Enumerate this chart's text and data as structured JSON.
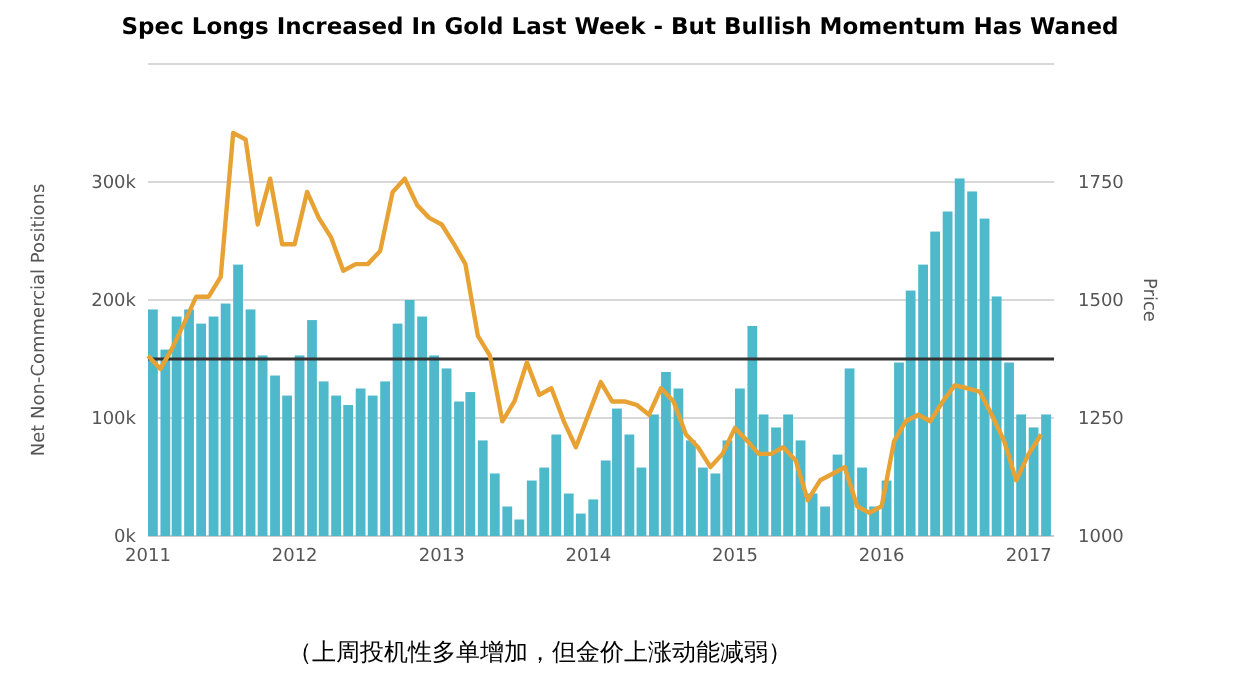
{
  "chart_data": {
    "type": "bar",
    "title": "Spec Longs Increased In Gold Last Week - But Bullish Momentum Has Waned",
    "ylabel": "Net Non-Commercial Positions",
    "y2label": "Price",
    "annotations": [
      "（上周投机性多单增加，但金价上涨动能减弱）"
    ],
    "x": [
      "2011-01",
      "2011-02",
      "2011-03",
      "2011-04",
      "2011-05",
      "2011-06",
      "2011-07",
      "2011-08",
      "2011-09",
      "2011-10",
      "2011-11",
      "2011-12",
      "2012-01",
      "2012-02",
      "2012-03",
      "2012-04",
      "2012-05",
      "2012-06",
      "2012-07",
      "2012-08",
      "2012-09",
      "2012-10",
      "2012-11",
      "2012-12",
      "2013-01",
      "2013-02",
      "2013-03",
      "2013-04",
      "2013-05",
      "2013-06",
      "2013-07",
      "2013-08",
      "2013-09",
      "2013-10",
      "2013-11",
      "2013-12",
      "2014-01",
      "2014-02",
      "2014-03",
      "2014-04",
      "2014-05",
      "2014-06",
      "2014-07",
      "2014-08",
      "2014-09",
      "2014-10",
      "2014-11",
      "2014-12",
      "2015-01",
      "2015-02",
      "2015-03",
      "2015-04",
      "2015-05",
      "2015-06",
      "2015-07",
      "2015-08",
      "2015-09",
      "2015-10",
      "2015-11",
      "2015-12",
      "2016-01",
      "2016-02",
      "2016-03",
      "2016-04",
      "2016-05",
      "2016-06",
      "2016-07",
      "2016-08",
      "2016-09",
      "2016-10",
      "2016-11",
      "2016-12",
      "2017-01",
      "2017-02"
    ],
    "series": [
      {
        "color": "#4fb9cc",
        "values": [
          192000,
          158000,
          186000,
          192000,
          180000,
          186000,
          197000,
          230000,
          192000,
          153000,
          136000,
          119000,
          153000,
          183000,
          131000,
          119000,
          111000,
          125000,
          119000,
          131000,
          180000,
          200000,
          186000,
          153000,
          142000,
          114000,
          122000,
          81000,
          53000,
          25000,
          14000,
          47000,
          58000,
          86000,
          36000,
          19000,
          31000,
          64000,
          108000,
          86000,
          58000,
          103000,
          139000,
          125000,
          81000,
          58000,
          53000,
          81000,
          125000,
          178000,
          103000,
          92000,
          103000,
          81000,
          36000,
          25000,
          69000,
          142000,
          58000,
          25000,
          47000,
          147000,
          208000,
          230000,
          258000,
          275000,
          303000,
          292000,
          269000,
          203000,
          147000,
          103000,
          92000,
          103000
        ]
      },
      {
        "type": "line",
        "axis": "y2",
        "color": "#e8a234",
        "values": [
          1382,
          1354,
          1396,
          1451,
          1507,
          1507,
          1549,
          1854,
          1840,
          1660,
          1757,
          1618,
          1618,
          1729,
          1674,
          1632,
          1562,
          1576,
          1576,
          1604,
          1729,
          1757,
          1701,
          1674,
          1660,
          1618,
          1576,
          1424,
          1382,
          1243,
          1285,
          1368,
          1299,
          1313,
          1243,
          1188,
          1257,
          1326,
          1285,
          1285,
          1278,
          1257,
          1313,
          1285,
          1215,
          1188,
          1146,
          1174,
          1229,
          1201,
          1174,
          1174,
          1188,
          1160,
          1076,
          1118,
          1132,
          1146,
          1063,
          1049,
          1063,
          1201,
          1243,
          1257,
          1243,
          1285,
          1319,
          1313,
          1306,
          1257,
          1201,
          1118,
          1174,
          1215
        ]
      }
    ],
    "xlim": [
      "2011-01-01",
      "2017-03-05"
    ],
    "xticks": [
      {
        "value": "2011-01-01",
        "label": "2011"
      },
      {
        "value": "2012-01-01",
        "label": "2012"
      },
      {
        "value": "2013-01-01",
        "label": "2013"
      },
      {
        "value": "2014-01-01",
        "label": "2014"
      },
      {
        "value": "2015-01-01",
        "label": "2015"
      },
      {
        "value": "2016-01-01",
        "label": "2016"
      },
      {
        "value": "2017-01-01",
        "label": "2017"
      }
    ],
    "ylim": [
      0,
      400000
    ],
    "yticks": [
      {
        "value": 0,
        "label": "0k"
      },
      {
        "value": 100000,
        "label": "100k"
      },
      {
        "value": 200000,
        "label": "200k"
      },
      {
        "value": 300000,
        "label": "300k"
      },
      {
        "value": 400000,
        "label": null
      }
    ],
    "y2lim": [
      1000,
      2000
    ],
    "y2ticks": [
      1000,
      1250,
      1500,
      1750
    ],
    "ref_lines": [
      {
        "axis": "y",
        "value": 150000,
        "color": "#333333"
      }
    ],
    "grid": "y"
  }
}
